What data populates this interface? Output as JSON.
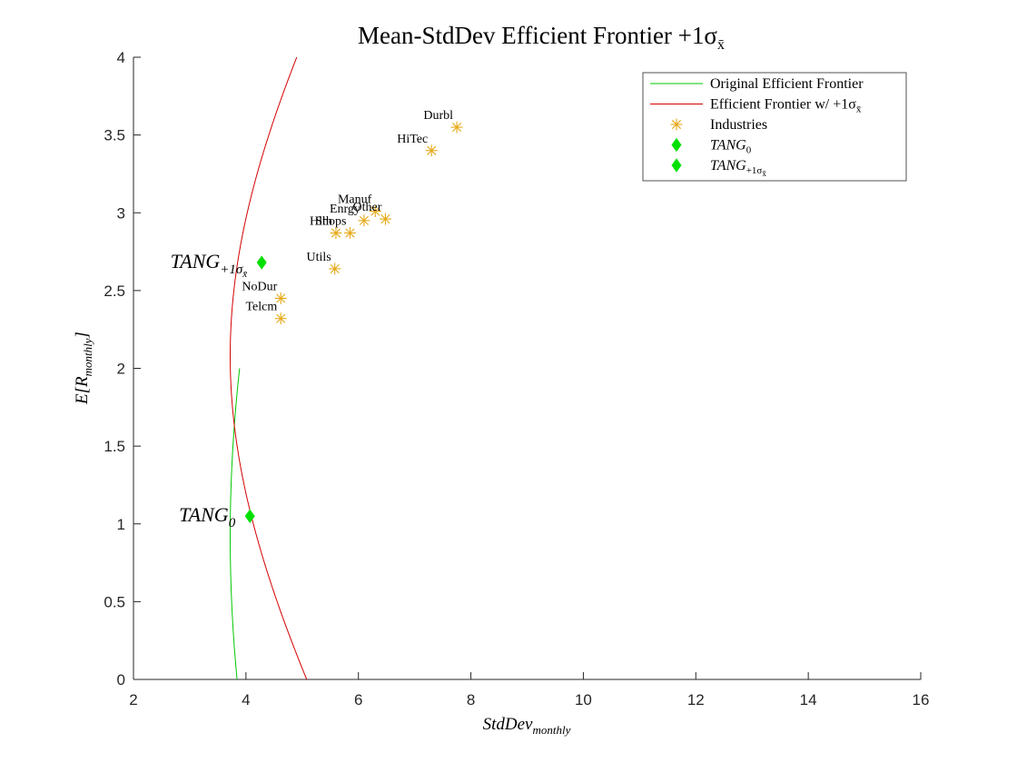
{
  "chart_data": {
    "type": "line",
    "title": "Mean-StdDev Efficient Frontier +1σ",
    "title_sub": "x̄",
    "xlabel": "StdDev",
    "xlabel_sub": "monthly",
    "ylabel": "E[R",
    "ylabel_sub": "monthly",
    "ylabel_close": "]",
    "xlim": [
      2,
      16
    ],
    "ylim": [
      0,
      4
    ],
    "xticks": [
      2,
      4,
      6,
      8,
      10,
      12,
      14,
      16
    ],
    "yticks": [
      0,
      0.5,
      1,
      1.5,
      2,
      2.5,
      3,
      3.5,
      4
    ],
    "xtick_labels": [
      "2",
      "4",
      "6",
      "8",
      "10",
      "12",
      "14",
      "16"
    ],
    "ytick_labels": [
      "0",
      "0.5",
      "1",
      "1.5",
      "2",
      "2.5",
      "3",
      "3.5",
      "4"
    ],
    "grid": false,
    "legend_position": "top-right",
    "series": [
      {
        "name": "Original Efficient Frontier",
        "kind": "frontier",
        "color": "#00c800",
        "min_var": {
          "std": 3.72,
          "mean": 0.92
        },
        "a": 16.64,
        "b": 15.28,
        "y_range": [
          0,
          2
        ]
      },
      {
        "name": "Efficient Frontier w/ +1σ",
        "name_sub": "x̄",
        "kind": "frontier",
        "color": "#d40000",
        "min_var": {
          "std": 3.72,
          "mean": 2.08
        },
        "a": 13.84,
        "b": 5.0,
        "y_range": [
          0,
          4
        ]
      },
      {
        "name": "Industries",
        "kind": "points",
        "color": "#e6a817",
        "points": [
          {
            "label": "NoDur",
            "x": 4.62,
            "y": 2.45
          },
          {
            "label": "Durbl",
            "x": 7.75,
            "y": 3.55
          },
          {
            "label": "Manuf",
            "x": 6.3,
            "y": 3.01
          },
          {
            "label": "Enrgy",
            "x": 6.1,
            "y": 2.95
          },
          {
            "label": "HiTec",
            "x": 7.3,
            "y": 3.4
          },
          {
            "label": "Telcm",
            "x": 4.62,
            "y": 2.32
          },
          {
            "label": "Shops",
            "x": 5.85,
            "y": 2.87
          },
          {
            "label": "Hlth",
            "x": 5.6,
            "y": 2.87
          },
          {
            "label": "Utils",
            "x": 5.58,
            "y": 2.64
          },
          {
            "label": "Other",
            "x": 6.48,
            "y": 2.96
          }
        ]
      },
      {
        "name": "TANG",
        "name_sub": "0",
        "kind": "tangency",
        "color": "#00e000",
        "x": 4.07,
        "y": 1.05
      },
      {
        "name": "TANG",
        "name_sub": "+1σ",
        "name_subsub": "x̄",
        "kind": "tangency",
        "color": "#00e000",
        "x": 4.28,
        "y": 2.68
      }
    ]
  }
}
